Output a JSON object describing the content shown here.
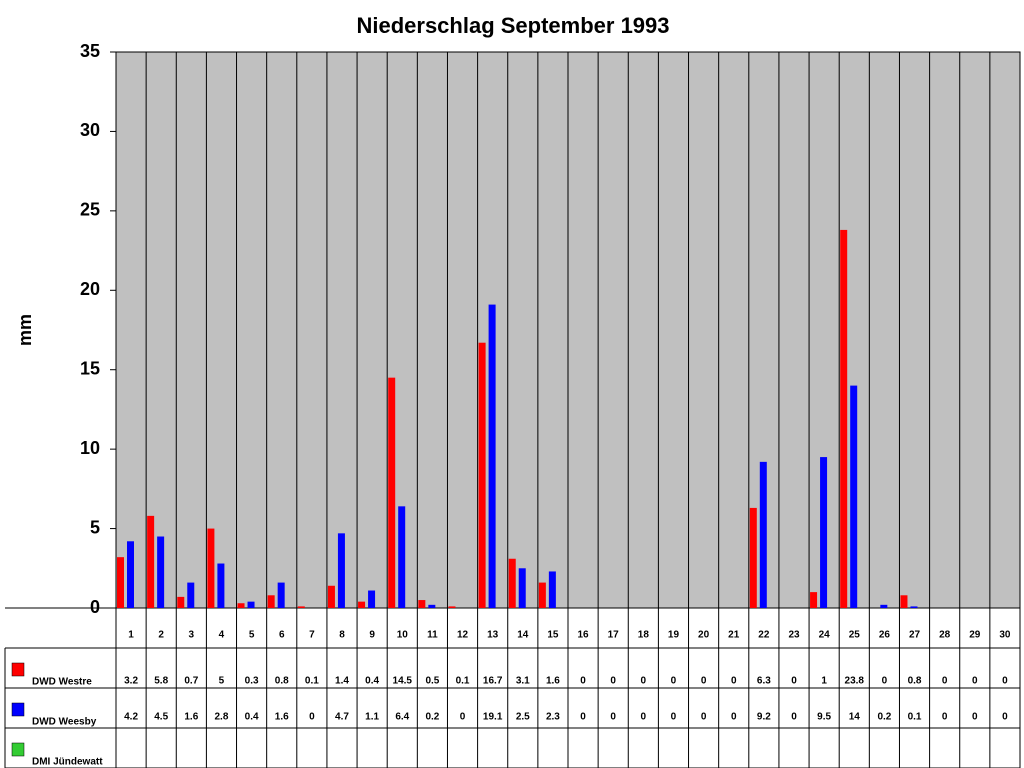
{
  "chart_data": {
    "type": "bar",
    "title": "Niederschlag September 1993",
    "y_label": "mm",
    "categories": [
      "1",
      "2",
      "3",
      "4",
      "5",
      "6",
      "7",
      "8",
      "9",
      "10",
      "11",
      "12",
      "13",
      "14",
      "15",
      "16",
      "17",
      "18",
      "19",
      "20",
      "21",
      "22",
      "23",
      "24",
      "25",
      "26",
      "27",
      "28",
      "29",
      "30"
    ],
    "series": [
      {
        "name": "DWD Westre",
        "color": "#ff0000",
        "values": [
          3.2,
          5.8,
          0.7,
          5,
          0.3,
          0.8,
          0.1,
          1.4,
          0.4,
          14.5,
          0.5,
          0.1,
          16.7,
          3.1,
          1.6,
          0,
          0,
          0,
          0,
          0,
          0,
          6.3,
          0,
          1,
          23.8,
          0,
          0.8,
          0,
          0,
          0
        ]
      },
      {
        "name": "DWD Weesby",
        "color": "#0000ff",
        "values": [
          4.2,
          4.5,
          1.6,
          2.8,
          0.4,
          1.6,
          0,
          4.7,
          1.1,
          6.4,
          0.2,
          0,
          19.1,
          2.5,
          2.3,
          0,
          0,
          0,
          0,
          0,
          0,
          9.2,
          0,
          9.5,
          14,
          0.2,
          0.1,
          0,
          0,
          0
        ]
      },
      {
        "name": "DMI Jündewatt",
        "color": "#33cc33",
        "values": [
          null,
          null,
          null,
          null,
          null,
          null,
          null,
          null,
          null,
          null,
          null,
          null,
          null,
          null,
          null,
          null,
          null,
          null,
          null,
          null,
          null,
          null,
          null,
          null,
          null,
          null,
          null,
          null,
          null,
          null
        ]
      }
    ],
    "ylim": [
      0,
      35
    ],
    "yticks": [
      0,
      5,
      10,
      15,
      20,
      25,
      30,
      35
    ],
    "plot_background": "#c0c0c0"
  }
}
